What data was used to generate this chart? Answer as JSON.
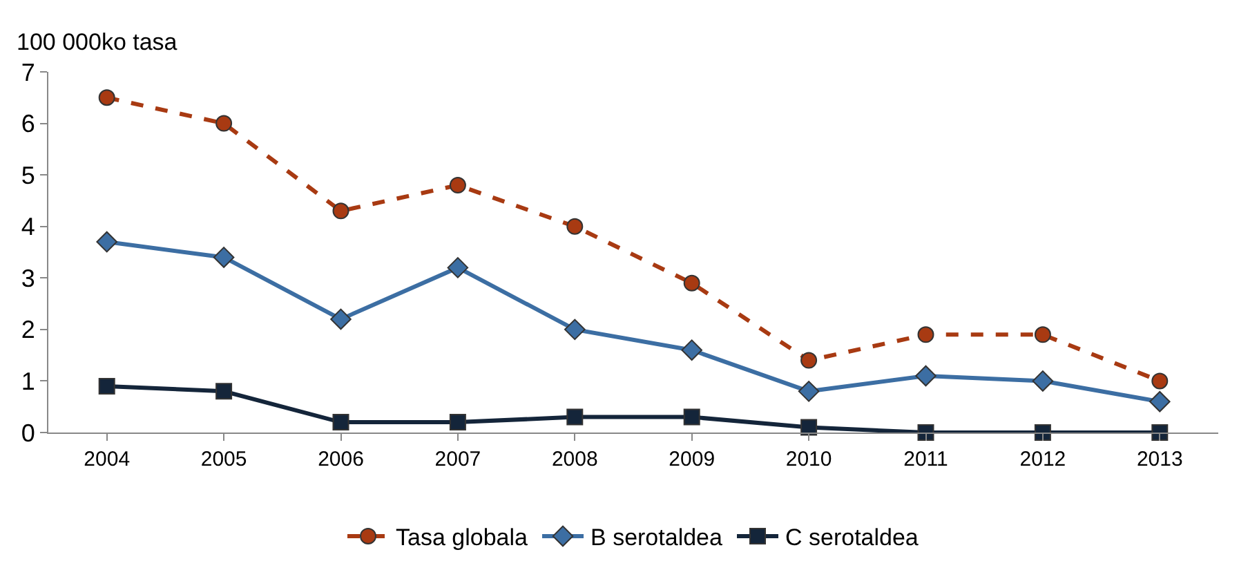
{
  "chart_data": {
    "type": "line",
    "ylabel": "100 000ko tasa",
    "categories": [
      "2004",
      "2005",
      "2006",
      "2007",
      "2008",
      "2009",
      "2010",
      "2011",
      "2012",
      "2013"
    ],
    "series": [
      {
        "name": "Tasa globala",
        "color": "#a83a12",
        "line_style": "dashed",
        "marker": "circle",
        "values": [
          6.5,
          6.0,
          4.3,
          4.8,
          4.0,
          2.9,
          1.4,
          1.9,
          1.9,
          1.0
        ]
      },
      {
        "name": "B serotaldea",
        "color": "#3c6ea3",
        "line_style": "solid",
        "marker": "diamond",
        "values": [
          3.7,
          3.4,
          2.2,
          3.2,
          2.0,
          1.6,
          0.8,
          1.1,
          1.0,
          0.6
        ]
      },
      {
        "name": "C serotaldea",
        "color": "#14253a",
        "line_style": "solid",
        "marker": "square",
        "values": [
          0.9,
          0.8,
          0.2,
          0.2,
          0.3,
          0.3,
          0.1,
          0,
          0,
          0
        ]
      }
    ],
    "ylim": [
      0,
      7
    ],
    "yticks": [
      0,
      1,
      2,
      3,
      4,
      5,
      6,
      7
    ],
    "grid": false,
    "legend": "bottom"
  }
}
